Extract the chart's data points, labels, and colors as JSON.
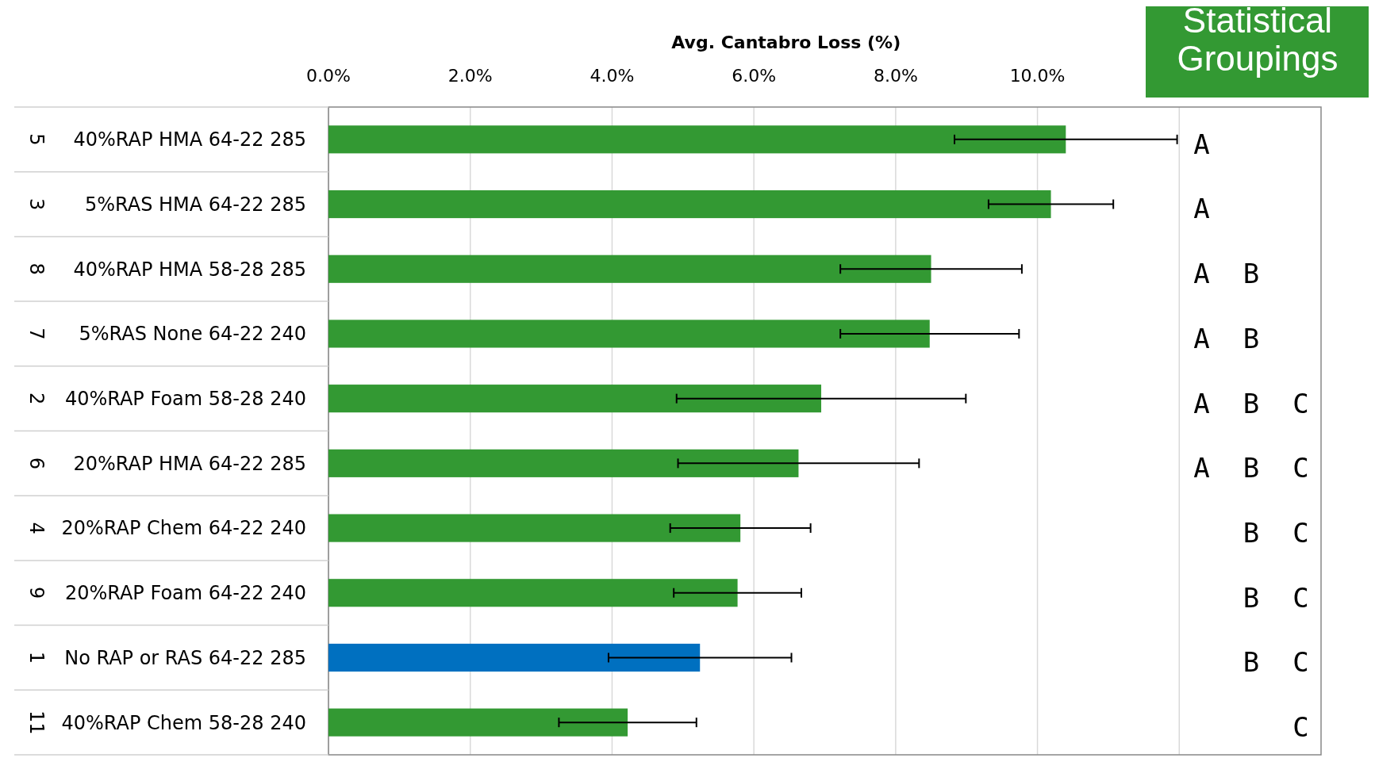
{
  "chart_data": {
    "type": "bar",
    "orientation": "horizontal",
    "xlabel": "Avg. Cantabro Loss (%)",
    "categories": [
      "40%RAP HMA 64-22 285",
      "5%RAS HMA 64-22 285",
      "40%RAP HMA 58-28 285",
      "5%RAS None 64-22 240",
      "40%RAP Foam 58-28 240",
      "20%RAP HMA 64-22 285",
      "20%RAP Chem 64-22 240",
      "20%RAP Foam 64-22 240",
      "No RAP or RAS 64-22 285",
      "40%RAP Chem 58-28 240"
    ],
    "values": [
      10.4,
      10.19,
      8.5,
      8.48,
      6.95,
      6.63,
      5.81,
      5.77,
      5.24,
      4.22
    ],
    "errors": [
      1.57,
      0.88,
      1.28,
      1.26,
      2.04,
      1.7,
      0.99,
      0.9,
      1.29,
      0.97
    ],
    "colors": [
      "#339933",
      "#339933",
      "#339933",
      "#339933",
      "#339933",
      "#339933",
      "#339933",
      "#339933",
      "#0070c0",
      "#339933"
    ],
    "xlim": [
      0,
      14
    ],
    "xticks": [
      {
        "value": 0,
        "label": "0.0%"
      },
      {
        "value": 2,
        "label": "2.0%"
      },
      {
        "value": 4,
        "label": "4.0%"
      },
      {
        "value": 6,
        "label": "6.0%"
      },
      {
        "value": 8,
        "label": "8.0%"
      },
      {
        "value": 10,
        "label": "10.0%"
      },
      {
        "value": 12,
        "label": null
      }
    ],
    "grid": "x",
    "annotations": [
      "Statistical Groupings",
      "5",
      "3",
      "8",
      "7",
      "2",
      "6",
      "4",
      "9",
      "1",
      "11",
      "A    ",
      "A    ",
      "A B  ",
      "A B  ",
      "A B C",
      "A B C",
      "  B C",
      "  B C",
      "  B C",
      "    C"
    ]
  }
}
